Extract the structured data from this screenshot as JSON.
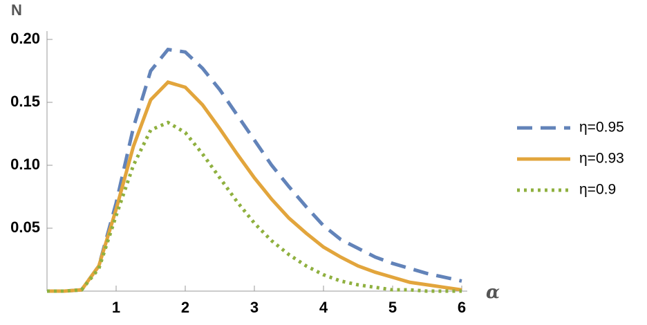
{
  "chart_data": {
    "type": "line",
    "y_label": "N",
    "x_label": "α",
    "x": [
      0,
      0.25,
      0.5,
      0.75,
      1,
      1.25,
      1.5,
      1.75,
      2,
      2.25,
      2.5,
      2.75,
      3,
      3.25,
      3.5,
      3.75,
      4,
      4.25,
      4.5,
      4.75,
      5,
      5.25,
      5.5,
      5.75,
      6
    ],
    "series": [
      {
        "name": "η=0.95",
        "color": "#6283b9",
        "style": "dashed",
        "values": [
          0,
          0,
          0.001,
          0.02,
          0.07,
          0.13,
          0.175,
          0.192,
          0.19,
          0.177,
          0.16,
          0.14,
          0.12,
          0.1,
          0.083,
          0.067,
          0.052,
          0.041,
          0.034,
          0.027,
          0.022,
          0.018,
          0.014,
          0.011,
          0.008
        ]
      },
      {
        "name": "η=0.93",
        "color": "#e2a53c",
        "style": "solid",
        "values": [
          0,
          0,
          0.001,
          0.02,
          0.065,
          0.115,
          0.152,
          0.166,
          0.162,
          0.148,
          0.129,
          0.109,
          0.09,
          0.073,
          0.058,
          0.046,
          0.035,
          0.027,
          0.02,
          0.015,
          0.011,
          0.007,
          0.005,
          0.003,
          0.001
        ]
      },
      {
        "name": "η=0.9",
        "color": "#8fb03f",
        "style": "dotted",
        "values": [
          0,
          0,
          0.001,
          0.018,
          0.06,
          0.1,
          0.128,
          0.134,
          0.126,
          0.109,
          0.09,
          0.071,
          0.054,
          0.04,
          0.029,
          0.02,
          0.013,
          0.008,
          0.005,
          0.003,
          0.001,
          0.001,
          0,
          0,
          0
        ]
      }
    ],
    "xlim": [
      0,
      6
    ],
    "ylim": [
      0,
      0.2
    ],
    "xticks": [
      1,
      2,
      3,
      4,
      5,
      6
    ],
    "yticks": [
      0.05,
      {
        "value": 0.1,
        "label": "0.10"
      },
      0.15,
      {
        "value": 0.2,
        "label": "0.20"
      }
    ],
    "legend": "right"
  }
}
